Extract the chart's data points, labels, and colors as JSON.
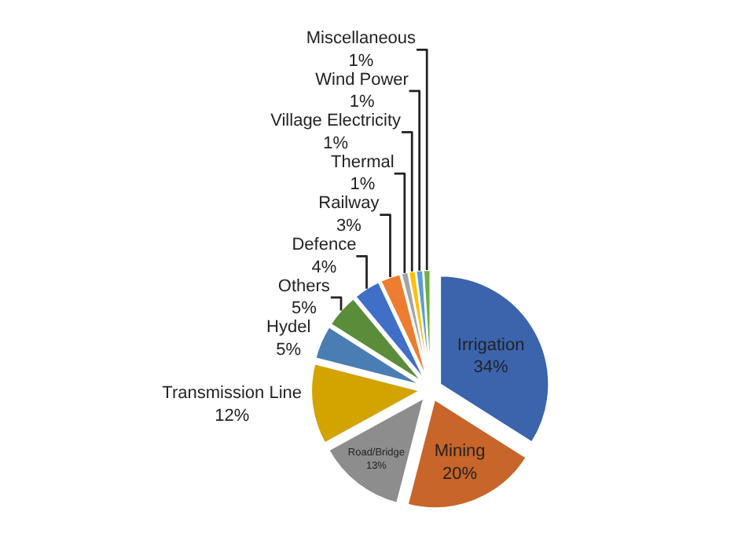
{
  "chart_data": {
    "type": "pie",
    "categories": [
      "Irrigation",
      "Mining",
      "Road/Bridge",
      "Transmission Line",
      "Hydel",
      "Others",
      "Defence",
      "Railway",
      "Thermal",
      "Village Electricity",
      "Wind Power",
      "Miscellaneous"
    ],
    "values": [
      34,
      20,
      13,
      12,
      5,
      5,
      4,
      3,
      1,
      1,
      1,
      1
    ],
    "value_labels": [
      "34%",
      "20%",
      "13%",
      "12%",
      "5%",
      "5%",
      "4%",
      "3%",
      "1%",
      "1%",
      "1%",
      "1%"
    ],
    "colors": [
      "#3b64ad",
      "#c8652a",
      "#8d8d8d",
      "#d3a300",
      "#4a7db3",
      "#5b8c3a",
      "#3f6fc6",
      "#ed7d31",
      "#a5a5a5",
      "#ffc000",
      "#5b9bd5",
      "#70ad47"
    ],
    "legend": false
  }
}
